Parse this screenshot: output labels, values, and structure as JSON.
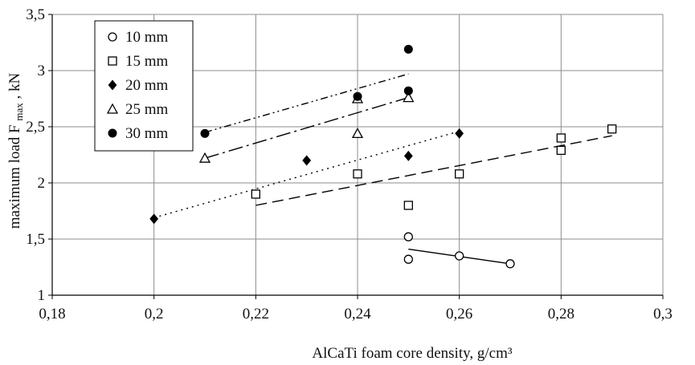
{
  "chart_data": {
    "type": "scatter",
    "xlabel": "AlCaTi foam core density, g/cm³",
    "ylabel_main": "maximum load F",
    "ylabel_sub": "max",
    "ylabel_unit": ", kN",
    "xlim": [
      0.18,
      0.3
    ],
    "ylim": [
      1,
      3.5
    ],
    "x_ticks": [
      0.18,
      0.2,
      0.22,
      0.24,
      0.26,
      0.28,
      0.3
    ],
    "x_tick_labels": [
      "0,18",
      "0,2",
      "0,22",
      "0,24",
      "0,26",
      "0,28",
      "0,3"
    ],
    "y_ticks": [
      1,
      1.5,
      2,
      2.5,
      3,
      3.5
    ],
    "y_tick_labels": [
      "1",
      "1,5",
      "2",
      "2,5",
      "3",
      "3,5"
    ],
    "grid": true,
    "legend_position": "top-left",
    "series": [
      {
        "name": "10 mm",
        "marker": "circle-open",
        "points": [
          [
            0.25,
            1.52
          ],
          [
            0.25,
            1.32
          ],
          [
            0.26,
            1.35
          ],
          [
            0.27,
            1.28
          ]
        ],
        "trend": {
          "x": [
            0.25,
            0.27
          ],
          "y": [
            1.41,
            1.28
          ],
          "style": "solid"
        }
      },
      {
        "name": "15 mm",
        "marker": "square-open",
        "points": [
          [
            0.22,
            1.9
          ],
          [
            0.24,
            2.08
          ],
          [
            0.25,
            1.8
          ],
          [
            0.26,
            2.08
          ],
          [
            0.28,
            2.29
          ],
          [
            0.28,
            2.4
          ],
          [
            0.29,
            2.48
          ]
        ],
        "trend": {
          "x": [
            0.22,
            0.29
          ],
          "y": [
            1.8,
            2.42
          ],
          "style": "dashed"
        }
      },
      {
        "name": "20 mm",
        "marker": "diamond-filled",
        "points": [
          [
            0.2,
            1.68
          ],
          [
            0.23,
            2.2
          ],
          [
            0.25,
            2.24
          ],
          [
            0.26,
            2.44
          ]
        ],
        "trend": {
          "x": [
            0.2,
            0.26
          ],
          "y": [
            1.69,
            2.46
          ],
          "style": "dotted"
        }
      },
      {
        "name": "25 mm",
        "marker": "triangle-open",
        "points": [
          [
            0.21,
            2.22
          ],
          [
            0.24,
            2.44
          ],
          [
            0.24,
            2.75
          ],
          [
            0.25,
            2.76
          ]
        ],
        "trend": {
          "x": [
            0.21,
            0.25
          ],
          "y": [
            2.22,
            2.76
          ],
          "style": "dash-dot-long"
        }
      },
      {
        "name": "30 mm",
        "marker": "circle-filled",
        "points": [
          [
            0.21,
            2.44
          ],
          [
            0.24,
            2.77
          ],
          [
            0.25,
            2.82
          ],
          [
            0.25,
            3.19
          ]
        ],
        "trend": {
          "x": [
            0.21,
            0.25
          ],
          "y": [
            2.45,
            2.97
          ],
          "style": "dash-dot"
        }
      }
    ]
  }
}
